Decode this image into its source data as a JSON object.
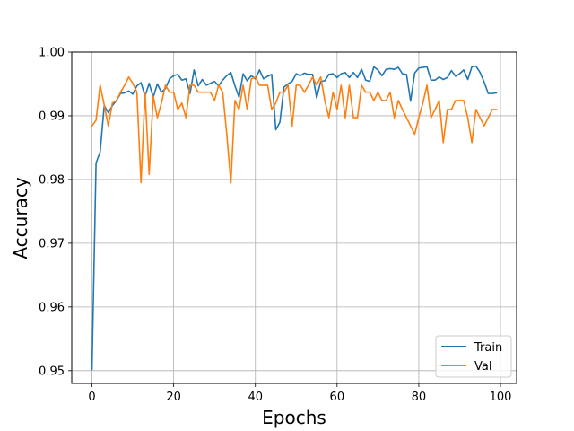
{
  "chart_data": {
    "type": "line",
    "title": "",
    "xlabel": "Epochs",
    "ylabel": "Accuracy",
    "xlim": [
      -4.95,
      103.95
    ],
    "ylim": [
      0.948,
      1.0
    ],
    "xticks": [
      0,
      20,
      40,
      60,
      80,
      100
    ],
    "yticks": [
      0.95,
      0.96,
      0.97,
      0.98,
      0.99,
      1.0
    ],
    "xtick_labels": [
      "0",
      "20",
      "40",
      "60",
      "80",
      "100"
    ],
    "ytick_labels": [
      "0.95",
      "0.96",
      "0.97",
      "0.98",
      "0.99",
      "1.00"
    ],
    "grid": true,
    "legend_position": "bottom-right",
    "x": [
      0,
      1,
      2,
      3,
      4,
      5,
      6,
      7,
      8,
      9,
      10,
      11,
      12,
      13,
      14,
      15,
      16,
      17,
      18,
      19,
      20,
      21,
      22,
      23,
      24,
      25,
      26,
      27,
      28,
      29,
      30,
      31,
      32,
      33,
      34,
      35,
      36,
      37,
      38,
      39,
      40,
      41,
      42,
      43,
      44,
      45,
      46,
      47,
      48,
      49,
      50,
      51,
      52,
      53,
      54,
      55,
      56,
      57,
      58,
      59,
      60,
      61,
      62,
      63,
      64,
      65,
      66,
      67,
      68,
      69,
      70,
      71,
      72,
      73,
      74,
      75,
      76,
      77,
      78,
      79,
      80,
      81,
      82,
      83,
      84,
      85,
      86,
      87,
      88,
      89,
      90,
      91,
      92,
      93,
      94,
      95,
      96,
      97,
      98,
      99
    ],
    "series": [
      {
        "name": "Train",
        "color": "#1f77b4",
        "values": [
          0.9502,
          0.9826,
          0.9843,
          0.9916,
          0.9905,
          0.9916,
          0.9924,
          0.9935,
          0.9936,
          0.9939,
          0.9934,
          0.9947,
          0.9952,
          0.9931,
          0.9951,
          0.9929,
          0.995,
          0.9937,
          0.9943,
          0.9958,
          0.9963,
          0.9965,
          0.9956,
          0.9958,
          0.9935,
          0.9972,
          0.9947,
          0.9957,
          0.9948,
          0.9951,
          0.9954,
          0.9947,
          0.9956,
          0.9963,
          0.9968,
          0.9947,
          0.9929,
          0.9966,
          0.9955,
          0.9963,
          0.9958,
          0.9972,
          0.9958,
          0.9962,
          0.9965,
          0.9878,
          0.989,
          0.9945,
          0.995,
          0.9954,
          0.9966,
          0.9963,
          0.9967,
          0.9965,
          0.9965,
          0.9928,
          0.9954,
          0.9955,
          0.9965,
          0.9966,
          0.996,
          0.9966,
          0.9968,
          0.996,
          0.9968,
          0.996,
          0.9973,
          0.9956,
          0.9954,
          0.9977,
          0.9972,
          0.9963,
          0.9973,
          0.9974,
          0.9973,
          0.9976,
          0.9966,
          0.9965,
          0.9923,
          0.9967,
          0.9975,
          0.9976,
          0.9977,
          0.9956,
          0.9956,
          0.9961,
          0.9957,
          0.996,
          0.9971,
          0.9962,
          0.9966,
          0.9972,
          0.9957,
          0.9977,
          0.9978,
          0.9968,
          0.9953,
          0.9935,
          0.9935,
          0.9936
        ]
      },
      {
        "name": "Val",
        "color": "#ff7f0e",
        "values": [
          0.9884,
          0.9893,
          0.9948,
          0.9917,
          0.9884,
          0.992,
          0.9924,
          0.9937,
          0.9948,
          0.9961,
          0.9951,
          0.9937,
          0.9795,
          0.9937,
          0.9808,
          0.9931,
          0.9897,
          0.992,
          0.9948,
          0.9937,
          0.9937,
          0.991,
          0.992,
          0.9897,
          0.9948,
          0.9948,
          0.9937,
          0.9937,
          0.9937,
          0.9937,
          0.9924,
          0.9948,
          0.9937,
          0.9871,
          0.9795,
          0.9924,
          0.991,
          0.9948,
          0.991,
          0.9958,
          0.9961,
          0.9948,
          0.9948,
          0.9948,
          0.991,
          0.992,
          0.9937,
          0.9937,
          0.9948,
          0.9884,
          0.9948,
          0.9948,
          0.9937,
          0.9948,
          0.9961,
          0.9948,
          0.9961,
          0.9924,
          0.9897,
          0.9937,
          0.991,
          0.9948,
          0.9897,
          0.9948,
          0.9897,
          0.9897,
          0.9948,
          0.9937,
          0.9937,
          0.9924,
          0.9937,
          0.9924,
          0.9924,
          0.9937,
          0.9897,
          0.9924,
          0.991,
          0.9897,
          0.9884,
          0.9871,
          0.9897,
          0.992,
          0.9948,
          0.9897,
          0.991,
          0.9924,
          0.9858,
          0.991,
          0.991,
          0.9924,
          0.9924,
          0.9924,
          0.9897,
          0.9858,
          0.991,
          0.9897,
          0.9884,
          0.9897,
          0.991,
          0.991
        ]
      }
    ]
  }
}
